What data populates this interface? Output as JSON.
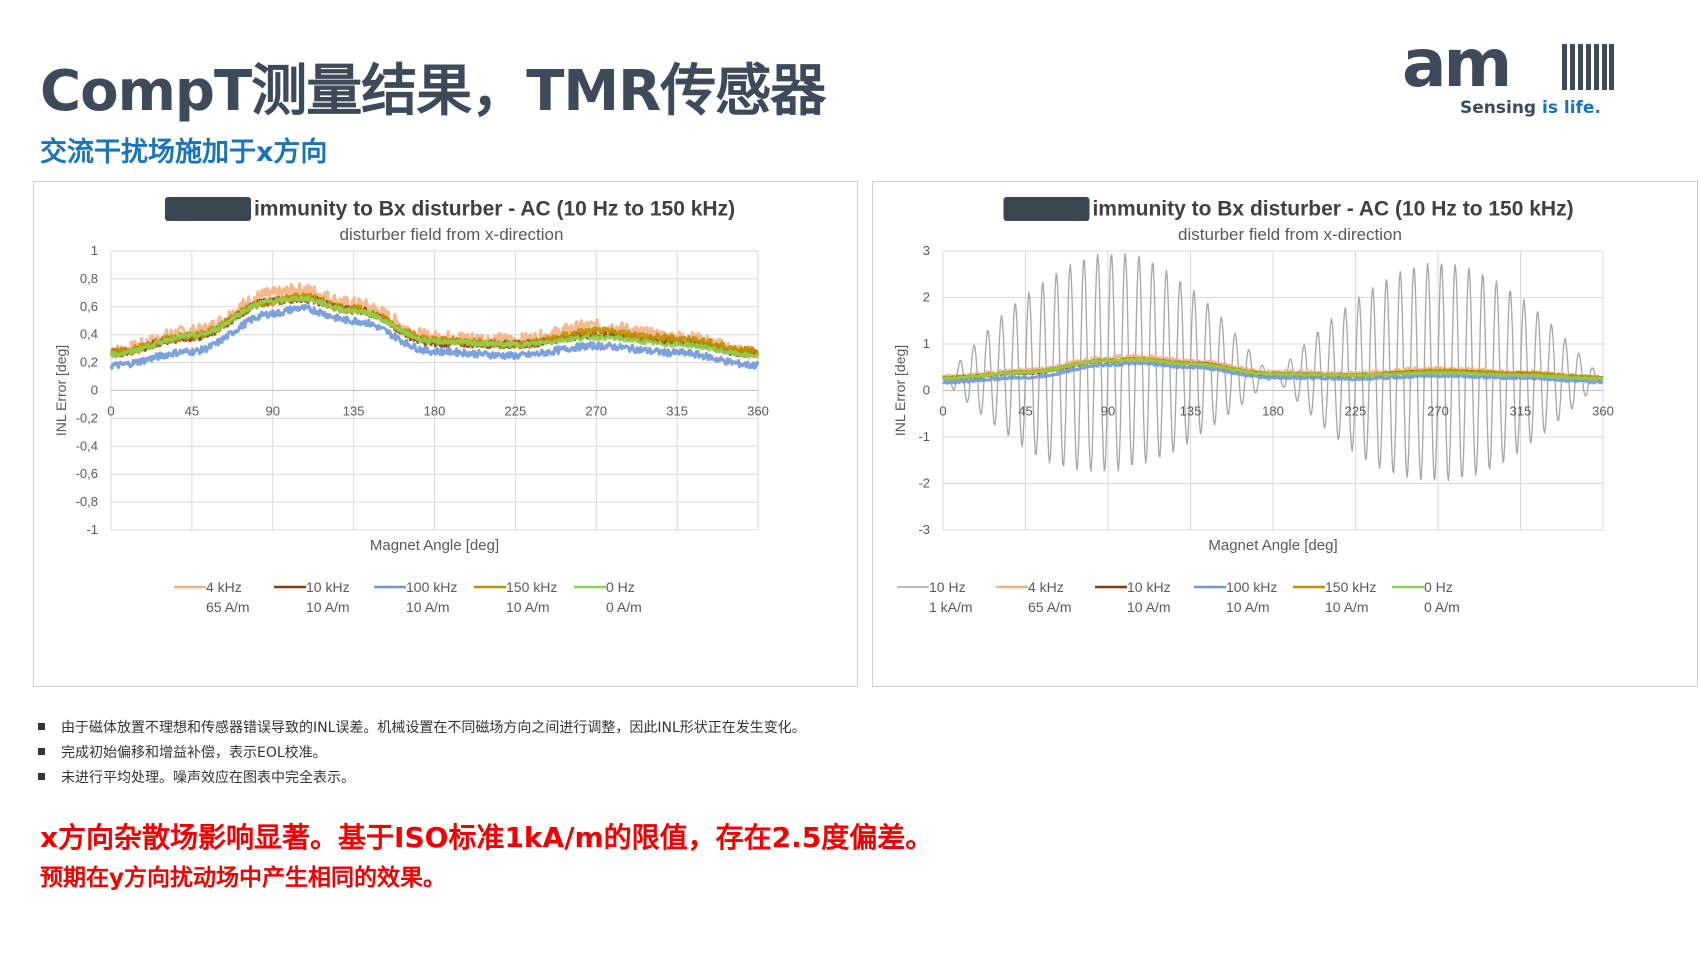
{
  "slide": {
    "title": "CompT测量结果，TMR传感器",
    "subtitle": "交流干扰场施加于x方向",
    "bullets": [
      "由于磁体放置不理想和传感器错误导致的INL误差。机械设置在不同磁场方向之间进行调整，因此INL形状正在发生变化。",
      "完成初始偏移和增益补偿，表示EOL校准。",
      "未进行平均处理。噪声效应在图表中完全表示。"
    ],
    "conclusion_line1": "x方向杂散场影响显著。基于ISO标准1kA/m的限值，存在2.5度偏差。",
    "conclusion_line2": "预期在y方向扰动场中产生相同的效果。"
  },
  "logo": {
    "wordmark": "am",
    "tagline_a": "Sensing ",
    "tagline_b": "is life."
  },
  "colors": {
    "title": "#3e4a59",
    "subtitle": "#1a75b8",
    "conclusion": "#f00000",
    "redaction": "#3b4650"
  },
  "chart_data": [
    {
      "type": "line",
      "title": "immunity to Bx disturber - AC (10 Hz to 150 kHz)",
      "subtitle": "disturber field from x-direction",
      "title_redacted_prefix": true,
      "xlabel": "Magnet Angle [deg]",
      "ylabel": "INL Error [deg]",
      "xlim": [
        0,
        360
      ],
      "ylim": [
        -1,
        1
      ],
      "x_ticks": [
        "0",
        "45",
        "90",
        "135",
        "180",
        "225",
        "270",
        "315",
        "360"
      ],
      "y_ticks": [
        "1",
        "0,8",
        "0,6",
        "0,4",
        "0,2",
        "0",
        "-0,2",
        "-0,4",
        "-0,6",
        "-0,8",
        "-1"
      ],
      "grid": true,
      "legend_position": "bottom",
      "x": [
        0,
        45,
        90,
        105,
        135,
        180,
        225,
        270,
        315,
        360
      ],
      "series": [
        {
          "name": "4 kHz",
          "sub": "65 A/m",
          "color": "#f4b183",
          "noise": 0.05,
          "values": [
            0.28,
            0.42,
            0.69,
            0.72,
            0.62,
            0.38,
            0.36,
            0.46,
            0.38,
            0.27
          ]
        },
        {
          "name": "10 kHz",
          "sub": "10 A/m",
          "color": "#843c0c",
          "noise": 0.025,
          "values": [
            0.27,
            0.38,
            0.64,
            0.66,
            0.58,
            0.34,
            0.33,
            0.4,
            0.35,
            0.26
          ]
        },
        {
          "name": "100 kHz",
          "sub": "10 A/m",
          "color": "#6f97d9",
          "noise": 0.025,
          "values": [
            0.18,
            0.28,
            0.55,
            0.59,
            0.5,
            0.28,
            0.25,
            0.32,
            0.27,
            0.18
          ]
        },
        {
          "name": "150 kHz",
          "sub": "10 A/m",
          "color": "#bf9000",
          "noise": 0.03,
          "values": [
            0.27,
            0.39,
            0.64,
            0.67,
            0.58,
            0.36,
            0.33,
            0.42,
            0.37,
            0.28
          ]
        },
        {
          "name": "0 Hz",
          "sub": "0 A/m",
          "color": "#92d050",
          "noise": 0.015,
          "values": [
            0.26,
            0.39,
            0.64,
            0.66,
            0.57,
            0.35,
            0.33,
            0.38,
            0.33,
            0.25
          ]
        }
      ]
    },
    {
      "type": "line",
      "title": "immunity to Bx disturber - AC (10 Hz to 150 kHz)",
      "subtitle": "disturber field from x-direction",
      "title_redacted_prefix": true,
      "xlabel": "Magnet Angle [deg]",
      "ylabel": "INL Error [deg]",
      "xlim": [
        0,
        360
      ],
      "ylim": [
        -3,
        3
      ],
      "x_ticks": [
        "0",
        "45",
        "90",
        "135",
        "180",
        "225",
        "270",
        "315",
        "360"
      ],
      "y_ticks": [
        "3",
        "2",
        "1",
        "0",
        "-1",
        "-2",
        "-3"
      ],
      "grid": true,
      "legend_position": "bottom",
      "x": [
        0,
        45,
        90,
        105,
        135,
        180,
        225,
        270,
        315,
        360
      ],
      "series": [
        {
          "name": "10 Hz",
          "sub": "1 kA/m",
          "color": "#a6a6a6",
          "noise": 0,
          "values": [
            0.25,
            0.4,
            0.6,
            0.65,
            0.55,
            0.3,
            0.3,
            0.4,
            0.35,
            0.25
          ],
          "oscillation_amplitude_max": 2.35,
          "oscillation_cycles": 48
        },
        {
          "name": "4 kHz",
          "sub": "65 A/m",
          "color": "#f4b183",
          "noise": 0.05,
          "values": [
            0.28,
            0.42,
            0.69,
            0.72,
            0.62,
            0.38,
            0.36,
            0.46,
            0.38,
            0.27
          ]
        },
        {
          "name": "10 kHz",
          "sub": "10 A/m",
          "color": "#843c0c",
          "noise": 0.025,
          "values": [
            0.27,
            0.38,
            0.64,
            0.66,
            0.58,
            0.34,
            0.33,
            0.4,
            0.35,
            0.26
          ]
        },
        {
          "name": "100 kHz",
          "sub": "10 A/m",
          "color": "#6f97d9",
          "noise": 0.025,
          "values": [
            0.18,
            0.28,
            0.55,
            0.59,
            0.5,
            0.28,
            0.25,
            0.32,
            0.27,
            0.18
          ]
        },
        {
          "name": "150 kHz",
          "sub": "10 A/m",
          "color": "#bf9000",
          "noise": 0.03,
          "values": [
            0.27,
            0.39,
            0.64,
            0.67,
            0.58,
            0.36,
            0.33,
            0.42,
            0.37,
            0.28
          ]
        },
        {
          "name": "0 Hz",
          "sub": "0 A/m",
          "color": "#92d050",
          "noise": 0.015,
          "values": [
            0.26,
            0.39,
            0.64,
            0.66,
            0.57,
            0.35,
            0.33,
            0.38,
            0.33,
            0.25
          ]
        }
      ]
    }
  ]
}
